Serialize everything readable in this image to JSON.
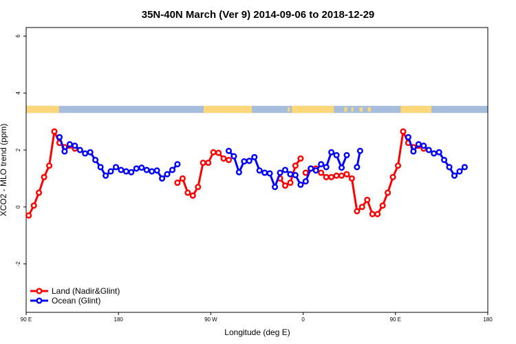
{
  "chart_data": {
    "type": "line",
    "title": "35N-40N March (Ver 9)   2014-09-06 to 2018-12-29",
    "xlabel": "Longitude (deg E)",
    "ylabel": "XCO2 - MLO trend (ppm)",
    "xlim": [
      90,
      540
    ],
    "ylim": [
      -3.7,
      6.3
    ],
    "xticks": [
      {
        "value": 90,
        "label": "90 E"
      },
      {
        "value": 180,
        "label": "180"
      },
      {
        "value": 270,
        "label": "90 W"
      },
      {
        "value": 360,
        "label": "0"
      },
      {
        "value": 450,
        "label": "90 E"
      },
      {
        "value": 540,
        "label": "180"
      }
    ],
    "yticks": [
      {
        "value": -2,
        "label": "-2"
      },
      {
        "value": 0,
        "label": "0"
      },
      {
        "value": 2,
        "label": "2"
      },
      {
        "value": 4,
        "label": "4"
      },
      {
        "value": 6,
        "label": "6"
      }
    ],
    "grid": false,
    "legend_position": "bottom-left",
    "series": [
      {
        "name": "Land (Nadir&Glint)",
        "color": "#ff0000",
        "segments": [
          [
            [
              92.5,
              -0.3
            ],
            [
              97.5,
              0.05
            ],
            [
              102.5,
              0.5
            ],
            [
              107.5,
              1.05
            ],
            [
              112.5,
              1.45
            ],
            [
              117.5,
              2.65
            ],
            [
              122.5,
              2.25
            ],
            [
              127.5,
              2.1
            ],
            [
              132.5,
              2.15
            ],
            [
              137.5,
              2.05
            ]
          ],
          [
            [
              237.5,
              0.85
            ],
            [
              242.5,
              1.0
            ],
            [
              247.5,
              0.5
            ],
            [
              252.5,
              0.4
            ],
            [
              257.5,
              0.7
            ],
            [
              262.5,
              1.55
            ],
            [
              267.5,
              1.55
            ],
            [
              272.5,
              1.92
            ],
            [
              277.5,
              1.9
            ],
            [
              282.5,
              1.7
            ],
            [
              287.5,
              1.65
            ]
          ],
          [
            [
              337.5,
              1.0
            ],
            [
              342.5,
              0.75
            ],
            [
              347.5,
              0.85
            ],
            [
              352.5,
              1.45
            ],
            [
              357.5,
              1.7
            ]
          ],
          [
            [
              362.5,
              1.2
            ],
            [
              367.5,
              1.35
            ],
            [
              372.5,
              1.35
            ],
            [
              377.5,
              1.2
            ],
            [
              382.5,
              1.05
            ],
            [
              387.5,
              1.05
            ],
            [
              392.5,
              1.1
            ],
            [
              397.5,
              1.1
            ],
            [
              402.5,
              1.15
            ],
            [
              407.5,
              1.0
            ],
            [
              412.5,
              -0.15
            ],
            [
              417.5,
              0.0
            ],
            [
              422.5,
              0.25
            ],
            [
              427.5,
              -0.25
            ],
            [
              432.5,
              -0.25
            ],
            [
              437.5,
              0.05
            ],
            [
              442.5,
              0.5
            ],
            [
              447.5,
              1.05
            ],
            [
              452.5,
              1.45
            ],
            [
              457.5,
              2.65
            ],
            [
              462.5,
              2.25
            ],
            [
              467.5,
              2.1
            ],
            [
              472.5,
              2.15
            ],
            [
              477.5,
              2.05
            ]
          ]
        ]
      },
      {
        "name": "Ocean (Glint)",
        "color": "#0000ff",
        "segments": [
          [
            [
              122.5,
              2.45
            ],
            [
              127.5,
              1.95
            ],
            [
              132.5,
              2.2
            ],
            [
              137.5,
              2.15
            ],
            [
              142.5,
              2.0
            ],
            [
              147.5,
              1.88
            ],
            [
              152.5,
              1.92
            ],
            [
              157.5,
              1.65
            ],
            [
              162.5,
              1.4
            ],
            [
              167.5,
              1.1
            ],
            [
              172.5,
              1.25
            ],
            [
              177.5,
              1.4
            ],
            [
              182.5,
              1.3
            ],
            [
              187.5,
              1.25
            ],
            [
              192.5,
              1.22
            ],
            [
              197.5,
              1.35
            ],
            [
              202.5,
              1.38
            ],
            [
              207.5,
              1.3
            ],
            [
              212.5,
              1.25
            ],
            [
              217.5,
              1.28
            ],
            [
              222.5,
              1.0
            ],
            [
              227.5,
              1.15
            ],
            [
              232.5,
              1.3
            ],
            [
              237.5,
              1.5
            ]
          ],
          [
            [
              287.5,
              1.97
            ],
            [
              292.5,
              1.78
            ],
            [
              297.5,
              1.22
            ],
            [
              302.5,
              1.6
            ],
            [
              307.5,
              1.62
            ],
            [
              312.5,
              1.75
            ],
            [
              317.5,
              1.28
            ],
            [
              322.5,
              1.2
            ],
            [
              327.5,
              1.18
            ],
            [
              332.5,
              0.7
            ],
            [
              337.5,
              1.2
            ],
            [
              342.5,
              1.3
            ],
            [
              347.5,
              1.15
            ],
            [
              352.5,
              1.12
            ],
            [
              357.5,
              0.78
            ],
            [
              362.5,
              0.9
            ],
            [
              367.5,
              1.35
            ],
            [
              372.5,
              1.28
            ],
            [
              377.5,
              1.5
            ],
            [
              382.5,
              1.4
            ],
            [
              387.5,
              1.92
            ],
            [
              392.5,
              1.82
            ],
            [
              397.5,
              1.38
            ],
            [
              402.5,
              1.82
            ]
          ],
          [
            [
              412.5,
              1.4
            ],
            [
              415.5,
              1.97
            ]
          ],
          [
            [
              462.5,
              2.45
            ],
            [
              467.5,
              1.95
            ],
            [
              472.5,
              2.2
            ],
            [
              477.5,
              2.15
            ],
            [
              482.5,
              2.0
            ],
            [
              487.5,
              1.88
            ],
            [
              492.5,
              1.92
            ],
            [
              497.5,
              1.65
            ],
            [
              502.5,
              1.4
            ],
            [
              507.5,
              1.1
            ],
            [
              512.5,
              1.25
            ],
            [
              517.5,
              1.4
            ]
          ]
        ]
      }
    ],
    "land_ocean_strip": {
      "y_range": [
        3.3,
        3.55
      ],
      "ocean_color": "#a6bddb",
      "land_color": "#fdd87a",
      "land_ranges": [
        [
          90,
          122
        ],
        [
          263,
          310
        ],
        [
          349,
          390
        ],
        [
          455,
          485
        ]
      ],
      "land_specks": [
        [
          400,
          403
        ],
        [
          407,
          409
        ],
        [
          415,
          418
        ],
        [
          423,
          426
        ],
        [
          345,
          347
        ]
      ]
    }
  }
}
